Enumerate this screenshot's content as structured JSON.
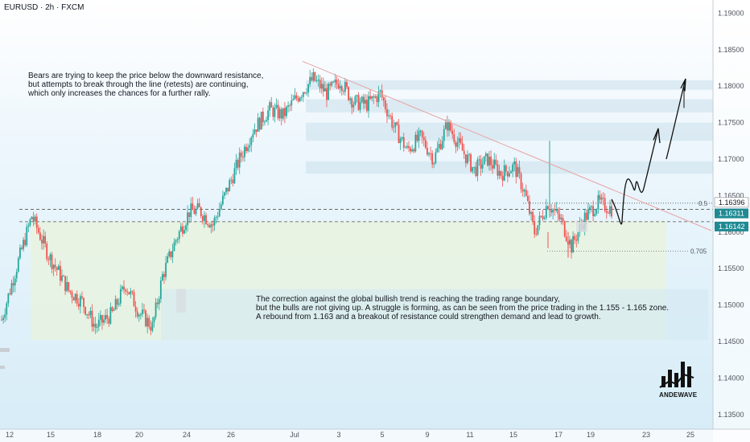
{
  "chart_data": {
    "type": "candlestick",
    "symbol": "EURUSD · 2h · FXCM",
    "x_ticks": [
      "12",
      "15",
      "18",
      "20",
      "24",
      "26",
      "Jul",
      "3",
      "5",
      "9",
      "11",
      "15",
      "17",
      "19",
      "23",
      "25"
    ],
    "y_ticks": [
      "1.19000",
      "1.18500",
      "1.18000",
      "1.17500",
      "1.17000",
      "1.16500",
      "1.16000",
      "1.15500",
      "1.15000",
      "1.14500",
      "1.14000",
      "1.13500"
    ],
    "ylim": [
      1.133,
      1.1918
    ],
    "price_tags": [
      {
        "label": "1.16396",
        "value": 1.16396,
        "color": "#ffffff",
        "text_color": "#131722"
      },
      {
        "label": "1.16311",
        "value": 1.16311,
        "color": "#1f8a92",
        "text_color": "#ffffff"
      },
      {
        "label": "1.16142",
        "value": 1.16142,
        "color": "#1f8a92",
        "text_color": "#ffffff"
      }
    ],
    "fib_levels": [
      {
        "label": "0.5",
        "value": 1.16396
      },
      {
        "label": "0.705",
        "value": 1.1574
      }
    ],
    "annotations": {
      "top": [
        "Bears are trying to keep the price below the downward resistance,",
        "but attempts to break through the line (retests) are continuing,",
        "which only increases the chances for a further rally."
      ],
      "bottom": [
        "The correction against the global bullish trend is reaching the trading range boundary,",
        "but the bulls are not giving up. A struggle is forming, as can be seen from the price trading in the 1.155 - 1.165 zone.",
        "A rebound from 1.163 and a breakout of resistance could strengthen demand and lead to growth."
      ]
    },
    "trendline": {
      "from": {
        "x_index": 130,
        "y": 1.1834
      },
      "to": {
        "x_index": 321,
        "y": 1.1613
      }
    },
    "support_zone": {
      "y_low": 1.1452,
      "y_high": 1.1615
    },
    "resistance_zones": [
      {
        "y_low": 1.1795,
        "y_high": 1.1808
      },
      {
        "y_low": 1.1764,
        "y_high": 1.1782
      },
      {
        "y_low": 1.1725,
        "y_high": 1.175
      },
      {
        "y_low": 1.168,
        "y_high": 1.1697
      }
    ],
    "projection_path": [
      [
        1.1645,
        1.1605,
        1.1668,
        1.1652,
        1.166,
        1.1645,
        1.17,
        1.174
      ]
    ],
    "colors": {
      "up": "#26a69a",
      "down": "#ef5350",
      "trendline": "#e8a3a3",
      "zone": "#e8f3dc",
      "resistance": "#cfe3ee"
    },
    "logo_text": "ANDEWAVE"
  }
}
